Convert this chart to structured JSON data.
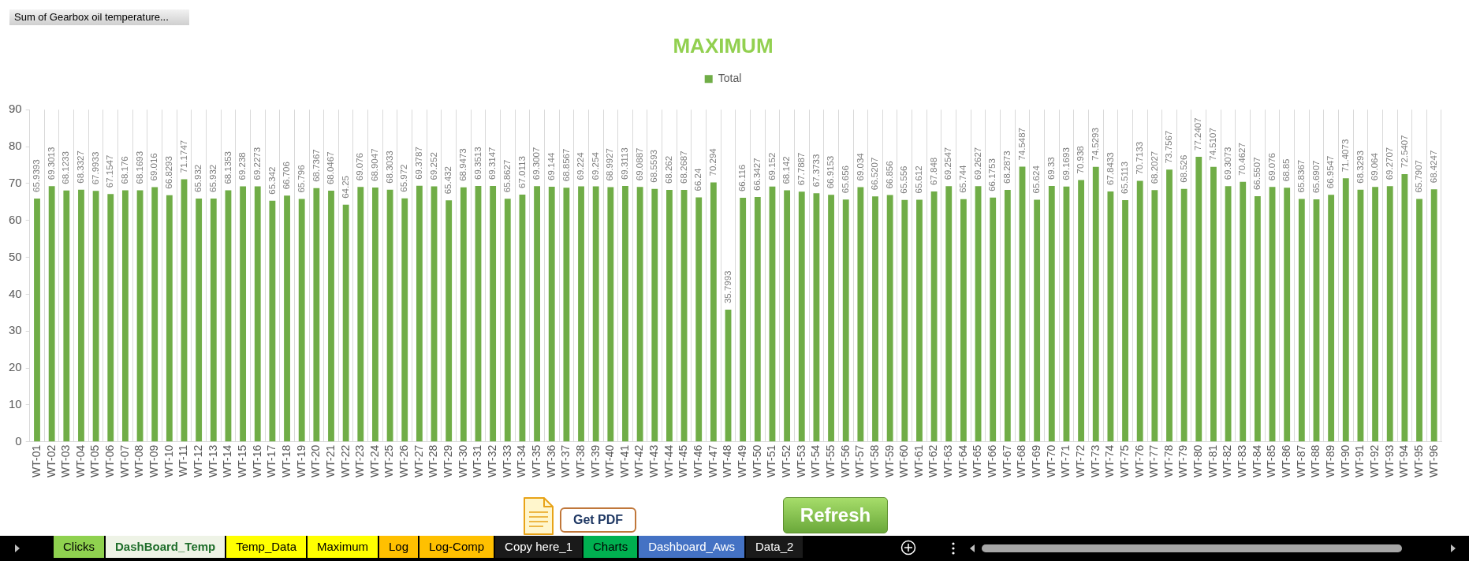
{
  "chart_data": {
    "type": "bar",
    "title": "MAXIMUM",
    "categories": [
      "WT-01",
      "WT-02",
      "WT-03",
      "WT-04",
      "WT-05",
      "WT-06",
      "WT-07",
      "WT-08",
      "WT-09",
      "WT-10",
      "WT-11",
      "WT-12",
      "WT-13",
      "WT-14",
      "WT-15",
      "WT-16",
      "WT-17",
      "WT-18",
      "WT-19",
      "WT-20",
      "WT-21",
      "WT-22",
      "WT-23",
      "WT-24",
      "WT-25",
      "WT-26",
      "WT-27",
      "WT-28",
      "WT-29",
      "WT-30",
      "WT-31",
      "WT-32",
      "WT-33",
      "WT-34",
      "WT-35",
      "WT-36",
      "WT-37",
      "WT-38",
      "WT-39",
      "WT-40",
      "WT-41",
      "WT-42",
      "WT-43",
      "WT-44",
      "WT-45",
      "WT-46",
      "WT-47",
      "WT-48",
      "WT-49",
      "WT-50",
      "WT-51",
      "WT-52",
      "WT-53",
      "WT-54",
      "WT-55",
      "WT-56",
      "WT-57",
      "WT-58",
      "WT-59",
      "WT-60",
      "WT-61",
      "WT-62",
      "WT-63",
      "WT-64",
      "WT-65",
      "WT-66",
      "WT-67",
      "WT-68",
      "WT-69",
      "WT-70",
      "WT-71",
      "WT-72",
      "WT-73",
      "WT-74",
      "WT-75",
      "WT-76",
      "WT-77",
      "WT-78",
      "WT-79",
      "WT-80",
      "WT-81",
      "WT-82",
      "WT-83",
      "WT-84",
      "WT-85",
      "WT-86",
      "WT-87",
      "WT-88",
      "WT-89",
      "WT-90",
      "WT-91",
      "WT-92",
      "WT-93",
      "WT-94",
      "WT-95",
      "WT-96"
    ],
    "series": [
      {
        "name": "Total",
        "color": "#70ad47",
        "values": [
          65.9393,
          69.3013,
          68.1233,
          68.3327,
          67.9933,
          67.1547,
          68.176,
          68.1693,
          69.016,
          66.8293,
          71.1747,
          65.932,
          65.932,
          68.1353,
          69.238,
          69.2273,
          65.342,
          66.706,
          65.796,
          68.7367,
          68.0467,
          64.25,
          69.076,
          68.9047,
          68.3033,
          65.972,
          69.3787,
          69.252,
          65.432,
          68.9473,
          69.3513,
          69.3147,
          65.8627,
          67.0113,
          69.3007,
          69.144,
          68.8567,
          69.224,
          69.254,
          68.9927,
          69.3113,
          69.0887,
          68.5593,
          68.262,
          68.2687,
          66.24,
          70.294,
          35.7993,
          66.116,
          66.3427,
          69.152,
          68.142,
          67.7887,
          67.3733,
          66.9153,
          65.656,
          69.034,
          66.5207,
          66.856,
          65.556,
          65.612,
          67.848,
          69.2547,
          65.744,
          69.2627,
          66.1753,
          68.2873,
          74.5487,
          65.624,
          69.33,
          69.1693,
          70.938,
          74.5293,
          67.8433,
          65.5113,
          70.7133,
          68.2027,
          73.7567,
          68.526,
          77.2407,
          74.5107,
          69.3073,
          70.4627,
          66.5507,
          69.076,
          68.85,
          65.8367,
          65.6907,
          66.9547,
          71.4073,
          68.3293,
          69.064,
          69.2707,
          72.5407,
          65.7907,
          68.4247
        ]
      }
    ],
    "ylim": [
      0,
      90
    ],
    "yticks": [
      0,
      10,
      20,
      30,
      40,
      50,
      60,
      70,
      80,
      90
    ],
    "grid": "x",
    "legend": "top",
    "data_labels": true,
    "annotations": [
      "Sum of Gearbox oil temperature...",
      "Get PDF",
      "Refresh",
      "Clicks",
      "DashBoard_Temp",
      "Temp_Data",
      "Maximum",
      "Log",
      "Log-Comp",
      "Copy here_1",
      "Charts",
      "Dashboard_Aws",
      "Data_2"
    ]
  }
}
